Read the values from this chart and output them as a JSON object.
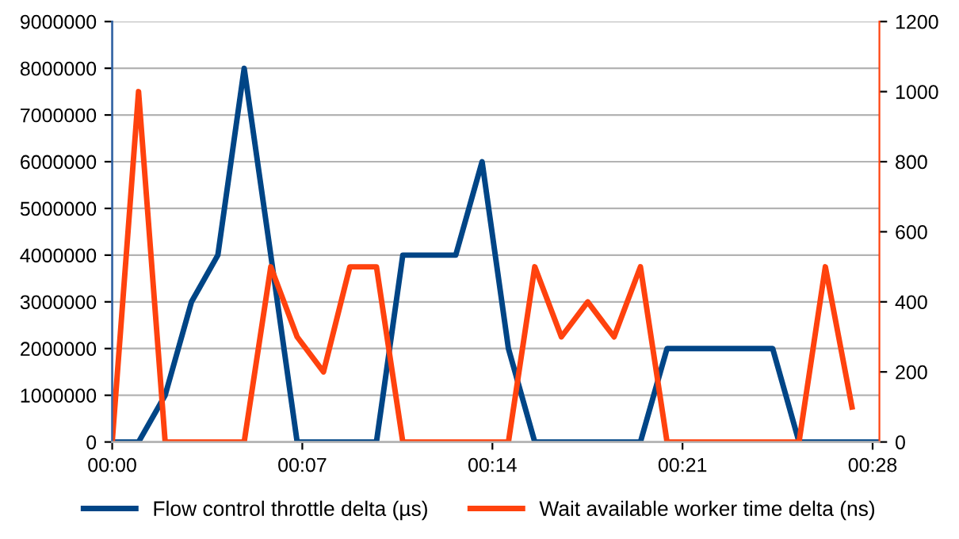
{
  "chart_data": {
    "type": "line",
    "x": [
      0,
      0.97,
      1.95,
      2.92,
      3.89,
      4.86,
      5.84,
      6.81,
      7.78,
      8.75,
      9.73,
      10.7,
      11.67,
      12.65,
      13.62,
      14.59,
      15.56,
      16.54,
      17.51,
      18.48,
      19.45,
      20.43,
      21.4,
      22.37,
      23.35,
      24.32,
      25.29,
      26.26,
      27.24,
      28.21
    ],
    "series": [
      {
        "name": "Flow control throttle delta (µs)",
        "color": "#004586",
        "values": [
          0,
          0,
          1000000,
          3000000,
          4000000,
          8000000,
          4000000,
          0,
          0,
          0,
          0,
          4000000,
          4000000,
          4000000,
          6000000,
          2000000,
          0,
          0,
          0,
          0,
          0,
          2000000,
          2000000,
          2000000,
          2000000,
          2000000,
          0,
          0,
          0,
          0
        ]
      },
      {
        "name": "Wait available worker time delta (ns)",
        "color": "#ff420e",
        "axis": "y2",
        "values": [
          0,
          1000,
          0,
          0,
          0,
          0,
          500,
          300,
          200,
          500,
          500,
          0,
          0,
          0,
          0,
          0,
          500,
          300,
          400,
          300,
          500,
          0,
          0,
          0,
          0,
          0,
          0,
          500,
          100,
          null
        ]
      }
    ],
    "xlim": [
      0,
      28.25
    ],
    "xticks": [
      {
        "value": 0,
        "label": "00:00"
      },
      {
        "value": 7,
        "label": "00:07"
      },
      {
        "value": 14,
        "label": "00:14"
      },
      {
        "value": 21,
        "label": "00:21"
      },
      {
        "value": 28,
        "label": "00:28"
      }
    ],
    "ylim": [
      0,
      9000000
    ],
    "yticks": [
      0,
      1000000,
      2000000,
      3000000,
      4000000,
      5000000,
      6000000,
      7000000,
      8000000,
      9000000
    ],
    "y2lim": [
      0,
      1200
    ],
    "y2ticks": [
      0,
      200,
      400,
      600,
      800,
      1000,
      1200
    ],
    "grid": "y",
    "legend": "bottom",
    "marker": "none",
    "line_style": "solid"
  }
}
